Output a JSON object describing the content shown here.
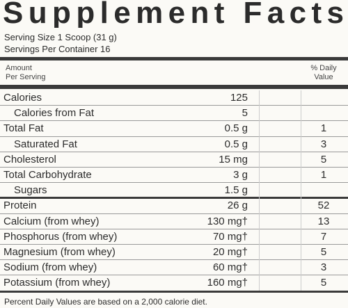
{
  "header": {
    "title": "Supplement Facts",
    "serving_size": "Serving Size 1 Scoop (31 g)",
    "servings_per_container": "Servings Per Container 16"
  },
  "table": {
    "header": [
      [
        "Amount",
        "Per Serving"
      ],
      [
        "% Daily",
        "Value"
      ]
    ],
    "rows": [
      [
        "Calories",
        "125"
      ],
      [
        "Calories from Fat",
        "5"
      ],
      [
        "Total Fat",
        "0.5 g",
        "1"
      ],
      [
        "Saturated Fat",
        "0.5 g",
        "3"
      ],
      [
        "Cholesterol",
        "15 mg",
        "5"
      ],
      [
        "Total Carbohydrate",
        "3 g",
        "1"
      ],
      [
        "Sugars",
        "1.5 g"
      ],
      [
        "Protein",
        "26 g",
        "52"
      ],
      [
        "Calcium (from whey)",
        "130 mg†",
        "13"
      ],
      [
        "Phosphorus (from whey)",
        "70 mg†",
        "7"
      ],
      [
        "Magnesium (from whey)",
        "20 mg†",
        "5"
      ],
      [
        "Sodium (from whey)",
        "60 mg†",
        "3"
      ],
      [
        "Potassium (from whey)",
        "160 mg†",
        "5"
      ]
    ]
  },
  "footer": {
    "note": "Percent Daily Values are based on a 2,000 calorie diet."
  }
}
